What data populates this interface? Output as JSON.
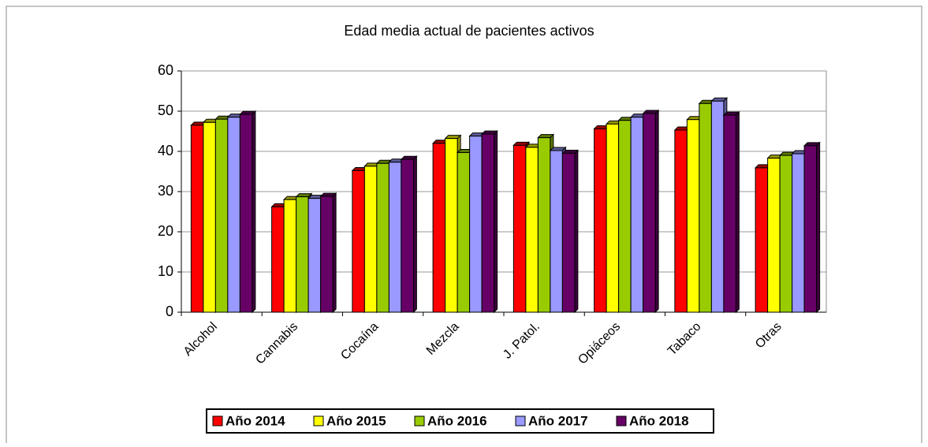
{
  "chart_data": {
    "type": "bar",
    "title": "Edad media actual de pacientes activos",
    "categories": [
      "Alcohol",
      "Cannabis",
      "Cocaína",
      "Mezcla",
      "J. Patol.",
      "Opiáceos",
      "Tabaco",
      "Otras"
    ],
    "series": [
      {
        "name": "Año 2014",
        "color": "#ff0000",
        "values": [
          46.5,
          26.2,
          35.2,
          42,
          41.5,
          45.6,
          45.3,
          35.9
        ]
      },
      {
        "name": "Año 2015",
        "color": "#ffff00",
        "values": [
          47.2,
          28,
          36.3,
          43.2,
          41,
          46.8,
          47.9,
          38.3
        ]
      },
      {
        "name": "Año 2016",
        "color": "#99cc00",
        "values": [
          48,
          28.7,
          37,
          39.7,
          43.4,
          47.7,
          51.9,
          39
        ]
      },
      {
        "name": "Año 2017",
        "color": "#9999ff",
        "values": [
          48.5,
          28.3,
          37.3,
          43.8,
          40.2,
          48.5,
          52.5,
          39.4
        ]
      },
      {
        "name": "Año 2018",
        "color": "#660066",
        "values": [
          49.2,
          28.8,
          38,
          44.3,
          39.5,
          49.4,
          49,
          41.4
        ]
      }
    ],
    "ylim": [
      0,
      60
    ],
    "yticks": [
      0,
      10,
      20,
      30,
      40,
      50,
      60
    ],
    "grid": true
  }
}
